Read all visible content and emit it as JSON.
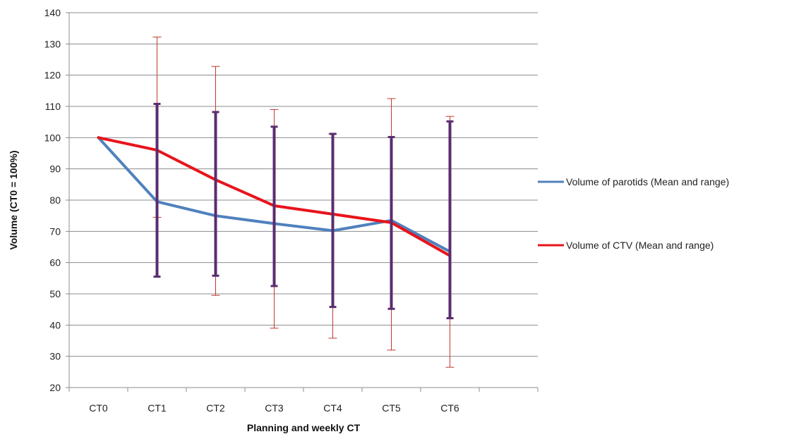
{
  "chart_data": {
    "type": "line",
    "xlabel": "Planning and weekly CT",
    "ylabel": "Volume (CT0 = 100%)",
    "ylim": [
      20,
      140
    ],
    "yticks": [
      20,
      30,
      40,
      50,
      60,
      70,
      80,
      90,
      100,
      110,
      120,
      130,
      140
    ],
    "categories": [
      "CT0",
      "CT1",
      "CT2",
      "CT3",
      "CT4",
      "CT5",
      "CT6"
    ],
    "empty_trailing_categories": 1,
    "grid": "horizontal",
    "legend_position": "right",
    "series": [
      {
        "name": "Volume of parotids (Mean and range)",
        "color": "#4f81bd",
        "values": [
          100,
          79.5,
          75,
          72.5,
          70.2,
          73.5,
          63.5
        ],
        "range_color": "#5b2c6f",
        "range_low": [
          null,
          55.5,
          55.8,
          52.5,
          45.8,
          45.2,
          42.2
        ],
        "range_high": [
          null,
          110.8,
          108.2,
          103.5,
          101.2,
          100.2,
          105.2
        ]
      },
      {
        "name": "Volume of CTV (Mean and range)",
        "color": "#e8141b",
        "values": [
          100,
          96,
          86.5,
          78.2,
          75.5,
          72.8,
          62.2
        ],
        "range_color": "#c0392b",
        "range_low": [
          null,
          74.5,
          49.5,
          39,
          35.8,
          32,
          26.5
        ],
        "range_high": [
          null,
          132.2,
          122.8,
          109,
          101.2,
          112.5,
          106.8
        ]
      }
    ]
  }
}
